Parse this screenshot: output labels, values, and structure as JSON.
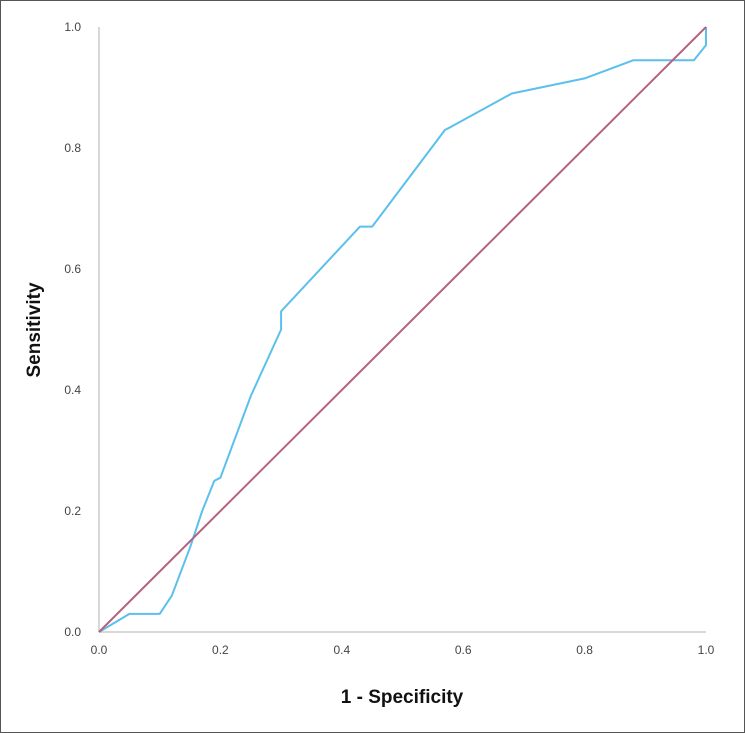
{
  "chart_data": {
    "type": "line",
    "title": "",
    "xlabel": "1 - Specificity",
    "ylabel": "Sensitivity",
    "xlim": [
      0,
      1
    ],
    "ylim": [
      0,
      1
    ],
    "x_ticks": [
      "0.0",
      "0.2",
      "0.4",
      "0.6",
      "0.8",
      "1.0"
    ],
    "y_ticks": [
      "0.0",
      "0.2",
      "0.4",
      "0.6",
      "0.8",
      "1.0"
    ],
    "grid": false,
    "legend": "none",
    "series": [
      {
        "color": "#5bc0eb",
        "points": [
          [
            0.0,
            0.0
          ],
          [
            0.05,
            0.03
          ],
          [
            0.1,
            0.03
          ],
          [
            0.12,
            0.06
          ],
          [
            0.15,
            0.14
          ],
          [
            0.17,
            0.2
          ],
          [
            0.19,
            0.25
          ],
          [
            0.2,
            0.255
          ],
          [
            0.25,
            0.39
          ],
          [
            0.3,
            0.5
          ],
          [
            0.3,
            0.53
          ],
          [
            0.43,
            0.67
          ],
          [
            0.45,
            0.67
          ],
          [
            0.57,
            0.83
          ],
          [
            0.58,
            0.835
          ],
          [
            0.68,
            0.89
          ],
          [
            0.8,
            0.915
          ],
          [
            0.88,
            0.945
          ],
          [
            0.98,
            0.945
          ],
          [
            1.0,
            0.97
          ],
          [
            1.0,
            1.0
          ]
        ]
      },
      {
        "color": "#b5637d",
        "points": [
          [
            0.0,
            0.0
          ],
          [
            1.0,
            1.0
          ]
        ]
      }
    ]
  }
}
